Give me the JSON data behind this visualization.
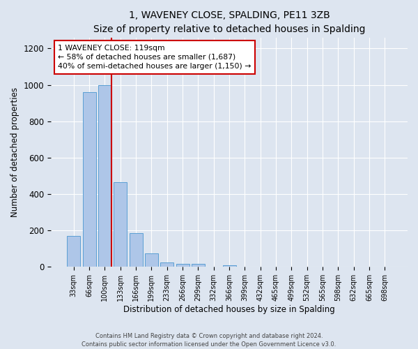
{
  "title": "1, WAVENEY CLOSE, SPALDING, PE11 3ZB",
  "subtitle": "Size of property relative to detached houses in Spalding",
  "xlabel": "Distribution of detached houses by size in Spalding",
  "ylabel": "Number of detached properties",
  "bar_labels": [
    "33sqm",
    "66sqm",
    "100sqm",
    "133sqm",
    "166sqm",
    "199sqm",
    "233sqm",
    "266sqm",
    "299sqm",
    "332sqm",
    "366sqm",
    "399sqm",
    "432sqm",
    "465sqm",
    "499sqm",
    "532sqm",
    "565sqm",
    "598sqm",
    "632sqm",
    "665sqm",
    "698sqm"
  ],
  "bar_values": [
    170,
    960,
    1000,
    465,
    185,
    75,
    25,
    15,
    15,
    0,
    10,
    0,
    0,
    0,
    0,
    0,
    0,
    0,
    0,
    0,
    0
  ],
  "bar_color": "#aec6e8",
  "bar_edge_color": "#5a9fd4",
  "vline_color": "#cc0000",
  "ylim": [
    0,
    1260
  ],
  "yticks": [
    0,
    200,
    400,
    600,
    800,
    1000,
    1200
  ],
  "annotation_title": "1 WAVENEY CLOSE: 119sqm",
  "annotation_line1": "← 58% of detached houses are smaller (1,687)",
  "annotation_line2": "40% of semi-detached houses are larger (1,150) →",
  "annotation_box_color": "#ffffff",
  "annotation_box_edge_color": "#cc0000",
  "footer_line1": "Contains HM Land Registry data © Crown copyright and database right 2024.",
  "footer_line2": "Contains public sector information licensed under the Open Government Licence v3.0.",
  "background_color": "#dde5f0",
  "plot_background": "#dde5f0",
  "grid_color": "#ffffff",
  "title_fontsize": 10,
  "subtitle_fontsize": 9
}
